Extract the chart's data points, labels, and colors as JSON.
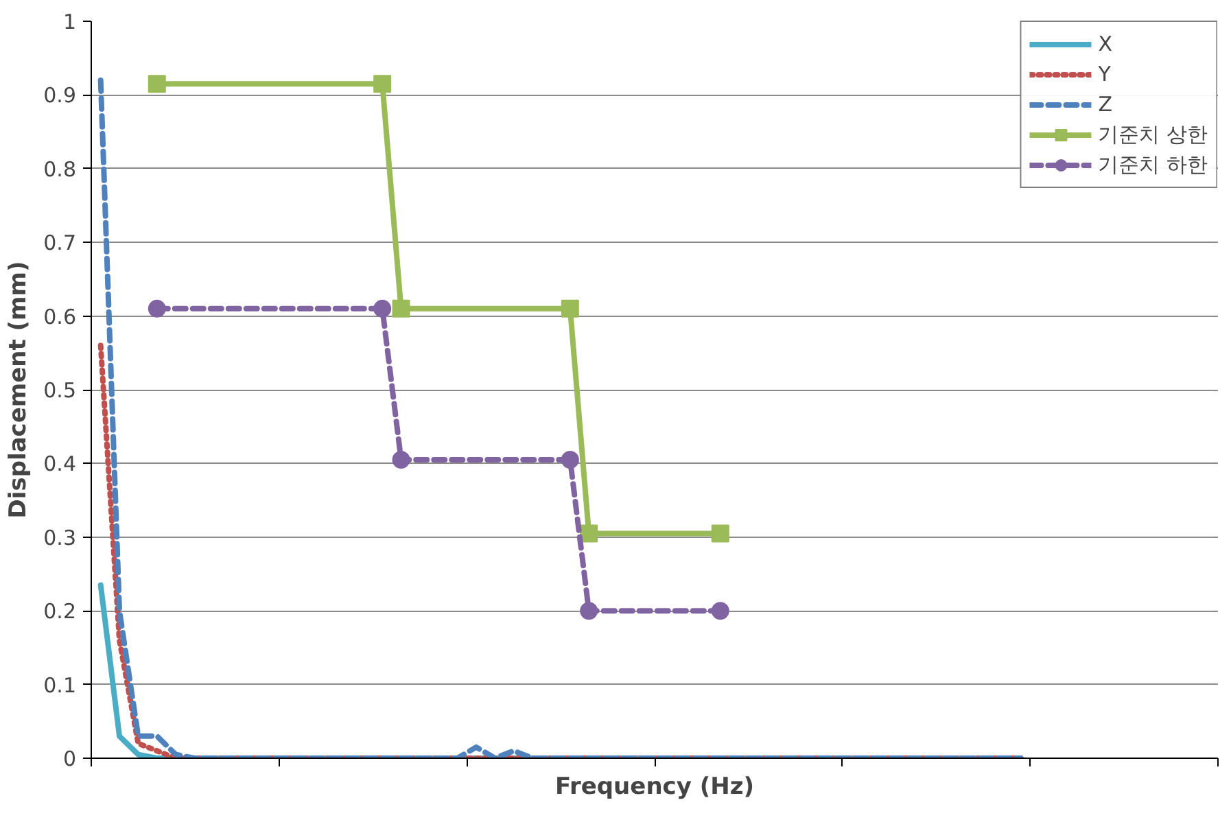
{
  "chart_data": {
    "type": "line",
    "xlabel": "Frequency (Hz)",
    "ylabel": "Displacement (mm)",
    "categories": [
      null,
      null,
      null,
      null,
      null,
      null,
      null,
      null,
      null,
      null,
      null,
      null,
      null,
      null,
      null,
      null,
      null,
      null,
      null,
      null,
      null,
      null,
      null,
      null,
      null,
      null,
      null,
      null,
      null,
      null,
      null,
      null,
      null,
      null,
      null,
      null,
      null,
      null,
      null,
      null,
      null,
      null,
      null,
      null,
      null,
      null,
      null,
      null,
      null,
      null,
      null,
      null,
      null,
      null,
      null,
      null,
      null,
      null,
      null,
      null
    ],
    "ylim": [
      0,
      1
    ],
    "yticks": [
      0,
      0.1,
      0.2,
      0.3,
      0.4,
      0.5,
      0.6,
      0.7,
      0.8,
      0.9,
      1
    ],
    "grid": "y",
    "legend": "top right",
    "tick_labels": "y",
    "series": [
      {
        "name": "X",
        "color": "#4bacc6",
        "line_style": "solid",
        "marker": "none",
        "values": [
          0.235,
          0.03,
          0.005,
          0,
          0,
          0,
          0,
          0,
          0,
          0,
          0,
          0,
          0,
          0,
          0,
          0,
          0,
          0,
          0,
          0,
          0,
          0,
          0,
          0,
          0,
          0,
          0,
          0,
          0,
          0,
          0,
          0,
          0,
          0,
          0,
          0,
          0,
          0,
          0,
          0,
          0,
          0,
          0,
          0,
          0,
          0,
          0,
          0,
          0,
          0,
          null,
          null,
          null,
          null,
          null,
          null,
          null,
          null,
          null,
          null
        ]
      },
      {
        "name": "Y",
        "color": "#c0504d",
        "line_style": "dotted",
        "marker": "none",
        "values": [
          0.56,
          0.16,
          0.02,
          0.01,
          0,
          0,
          0,
          0,
          0,
          0,
          0,
          0,
          0,
          0,
          0,
          0,
          0,
          0,
          0,
          0,
          0,
          0,
          0,
          0,
          0,
          0,
          0,
          0,
          0,
          0,
          0,
          0,
          0,
          0,
          0,
          0,
          0,
          0,
          0,
          0,
          0,
          0,
          0,
          0,
          0,
          0,
          0,
          0,
          0,
          0,
          null,
          null,
          null,
          null,
          null,
          null,
          null,
          null,
          null,
          null
        ]
      },
      {
        "name": "Z",
        "color": "#4f81bd",
        "line_style": "dashed",
        "marker": "none",
        "values": [
          0.92,
          0.2,
          0.03,
          0.03,
          0.005,
          0,
          0,
          0,
          0,
          0,
          0,
          0,
          0,
          0,
          0,
          0,
          0,
          0,
          0,
          0,
          0.015,
          0,
          0.01,
          0,
          0,
          0,
          0,
          0,
          0,
          0,
          0,
          0,
          0,
          0,
          0,
          0,
          0,
          0,
          0,
          0,
          0,
          0,
          0,
          0,
          0,
          0,
          0,
          0,
          0,
          0,
          null,
          null,
          null,
          null,
          null,
          null,
          null,
          null,
          null,
          null
        ]
      },
      {
        "name": "기준치 상한",
        "color": "#9bbb59",
        "line_style": "solid",
        "marker": "square",
        "values": [
          null,
          null,
          null,
          0.915,
          null,
          null,
          null,
          null,
          null,
          null,
          null,
          null,
          null,
          null,
          null,
          0.915,
          0.61,
          null,
          null,
          null,
          null,
          null,
          null,
          null,
          null,
          0.61,
          0.305,
          null,
          null,
          null,
          null,
          null,
          null,
          0.305,
          null,
          null,
          null,
          null,
          null,
          null,
          null,
          null,
          null,
          null,
          null,
          null,
          null,
          null,
          null,
          null,
          null,
          null,
          null,
          null,
          null,
          null,
          null,
          null,
          null,
          null
        ]
      },
      {
        "name": "기준치 하한",
        "color": "#8064a2",
        "line_style": "dashed",
        "marker": "circle",
        "values": [
          null,
          null,
          null,
          0.61,
          null,
          null,
          null,
          null,
          null,
          null,
          null,
          null,
          null,
          null,
          null,
          0.61,
          0.405,
          null,
          null,
          null,
          null,
          null,
          null,
          null,
          null,
          0.405,
          0.2,
          null,
          null,
          null,
          null,
          null,
          null,
          0.2,
          null,
          null,
          null,
          null,
          null,
          null,
          null,
          null,
          null,
          null,
          null,
          null,
          null,
          null,
          null,
          null,
          null,
          null,
          null,
          null,
          null,
          null,
          null,
          null,
          null,
          null
        ]
      }
    ]
  }
}
